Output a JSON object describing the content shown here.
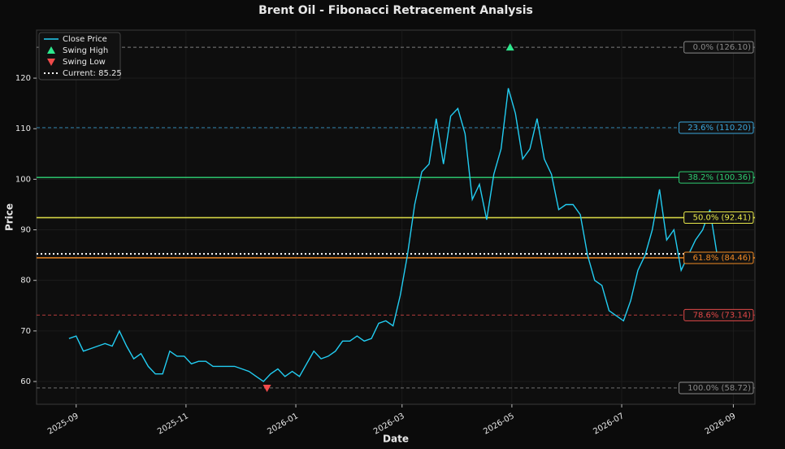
{
  "chart_data": {
    "type": "line",
    "title": "Brent Oil - Fibonacci Retracement Analysis",
    "x_label": "Date",
    "y_label": "Price",
    "xlim": [
      20310,
      20709
    ],
    "ylim": [
      55.5,
      129.5
    ],
    "xticks": [
      {
        "value": 20332,
        "label": "2025-09"
      },
      {
        "value": 20393,
        "label": "2025-11"
      },
      {
        "value": 20454,
        "label": "2026-01"
      },
      {
        "value": 20513,
        "label": "2026-03"
      },
      {
        "value": 20574,
        "label": "2026-05"
      },
      {
        "value": 20635,
        "label": "2026-07"
      },
      {
        "value": 20697,
        "label": "2026-09"
      }
    ],
    "yticks": [
      60,
      70,
      80,
      90,
      100,
      110,
      120
    ],
    "grid": true,
    "series": [
      {
        "name": "Close Price",
        "color": "#22cdf2",
        "x": [
          20328,
          20332,
          20336,
          20340,
          20344,
          20348,
          20352,
          20356,
          20360,
          20364,
          20368,
          20372,
          20376,
          20380,
          20384,
          20388,
          20392,
          20396,
          20400,
          20404,
          20408,
          20412,
          20416,
          20420,
          20424,
          20428,
          20432,
          20436,
          20440,
          20444,
          20448,
          20452,
          20456,
          20460,
          20464,
          20468,
          20472,
          20476,
          20480,
          20484,
          20488,
          20492,
          20496,
          20500,
          20504,
          20508,
          20512,
          20516,
          20520,
          20524,
          20528,
          20532,
          20536,
          20540,
          20544,
          20548,
          20552,
          20556,
          20560,
          20564,
          20568,
          20572,
          20576,
          20580,
          20584,
          20588,
          20592,
          20596,
          20600,
          20604,
          20608,
          20612,
          20616,
          20620,
          20624,
          20628,
          20632,
          20636,
          20640,
          20644,
          20648,
          20652,
          20656,
          20660,
          20664,
          20668,
          20672,
          20676,
          20680,
          20684,
          20688
        ],
        "values": [
          68.5,
          69,
          66,
          66.5,
          67,
          67.5,
          67,
          70,
          67,
          64.5,
          65.5,
          63,
          61.5,
          61.5,
          66,
          65,
          65,
          63.5,
          64,
          64,
          63,
          63,
          63,
          63,
          62.5,
          62,
          61,
          60,
          61.5,
          62.5,
          61,
          62,
          61,
          63.5,
          66,
          64.5,
          65,
          66,
          68,
          68,
          69,
          68,
          68.5,
          71.5,
          72,
          71,
          77,
          85,
          95,
          101.5,
          103,
          112,
          103,
          112.5,
          114,
          109,
          96,
          99,
          92,
          101,
          106,
          118,
          113,
          104,
          106,
          112,
          104,
          101,
          94,
          95,
          95,
          93,
          85,
          80,
          79,
          74,
          73,
          72,
          76,
          82,
          85,
          90,
          98,
          88,
          90,
          82,
          85,
          88,
          90,
          94,
          85
        ]
      }
    ],
    "swing_high": {
      "name": "Swing High",
      "color": "#2ee88e",
      "x": 20573,
      "value": 126.1
    },
    "swing_low": {
      "name": "Swing Low",
      "color": "#f04b4b",
      "x": 20438,
      "value": 58.72
    },
    "current": {
      "name": "Current: 85.25",
      "value": 85.25,
      "color": "#ffffff"
    },
    "levels": [
      {
        "label": "0.0% (126.10)",
        "value": 126.1,
        "color": "#8a8a8a",
        "style": "dashed"
      },
      {
        "label": "23.6% (110.20)",
        "value": 110.2,
        "color": "#3aa6dc",
        "style": "dashed"
      },
      {
        "label": "38.2% (100.36)",
        "value": 100.36,
        "color": "#2ecc71",
        "style": "solid"
      },
      {
        "label": "50.0% (92.41)",
        "value": 92.41,
        "color": "#e8e84a",
        "style": "solid"
      },
      {
        "label": "61.8% (84.46)",
        "value": 84.46,
        "color": "#f08a24",
        "style": "solid"
      },
      {
        "label": "78.6% (73.14)",
        "value": 73.14,
        "color": "#e04848",
        "style": "dashed"
      },
      {
        "label": "100.0% (58.72)",
        "value": 58.72,
        "color": "#8a8a8a",
        "style": "dashed"
      }
    ]
  }
}
